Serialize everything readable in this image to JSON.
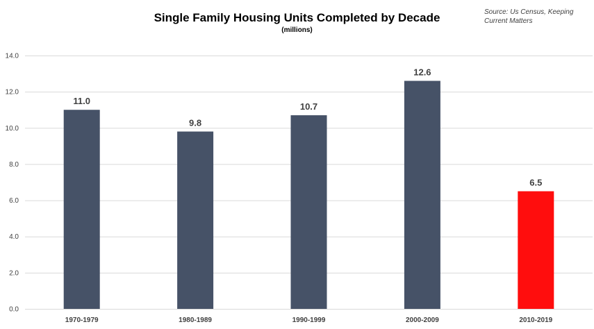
{
  "chart_data": {
    "type": "bar",
    "title": "Single Family Housing Units Completed by Decade",
    "subtitle": "(millions)",
    "source": [
      "Source: Us Census, Keeping",
      "Current Matters"
    ],
    "categories": [
      "1970-1979",
      "1980-1989",
      "1990-1999",
      "2000-2009",
      "2010-2019"
    ],
    "values": [
      11.0,
      9.8,
      10.7,
      12.6,
      6.5
    ],
    "data_labels": [
      "11.0",
      "9.8",
      "10.7",
      "12.6",
      "6.5"
    ],
    "colors": [
      "#465267",
      "#465267",
      "#465267",
      "#465267",
      "#ff0d0d"
    ],
    "ylim": [
      0,
      14
    ],
    "yticks": [
      "0.0",
      "2.0",
      "4.0",
      "6.0",
      "8.0",
      "10.0",
      "12.0",
      "14.0"
    ],
    "xlabel": "",
    "ylabel": "",
    "grid": true,
    "legend": "none",
    "gridline_color": "#d9d9d9",
    "axis_text_color": "#404040"
  }
}
